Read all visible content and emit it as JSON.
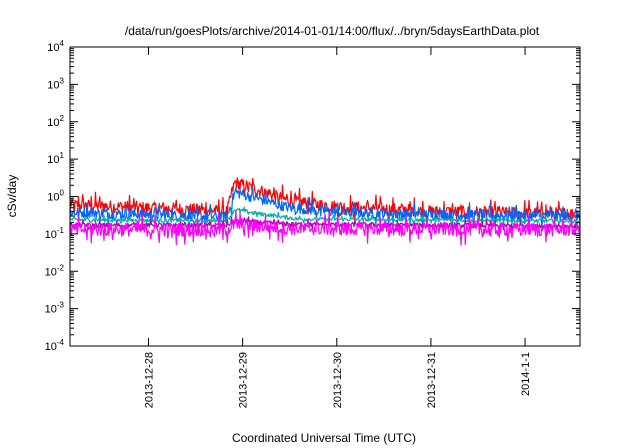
{
  "chart_data": {
    "type": "line",
    "title": "/data/run/goesPlots/archive/2014-01-01/14:00/flux/../bryn/5daysEarthData.plot",
    "xlabel": "Coordinated Universal Time (UTC)",
    "ylabel": "cSv/day",
    "yscale": "log",
    "ylim": [
      0.0001,
      10000
    ],
    "y_ticks": [
      {
        "value": 0.0001,
        "base": "10",
        "exp": "-4"
      },
      {
        "value": 0.001,
        "base": "10",
        "exp": "-3"
      },
      {
        "value": 0.01,
        "base": "10",
        "exp": "-2"
      },
      {
        "value": 0.1,
        "base": "10",
        "exp": "-1"
      },
      {
        "value": 1,
        "base": "10",
        "exp": "0"
      },
      {
        "value": 10,
        "base": "10",
        "exp": "1"
      },
      {
        "value": 100,
        "base": "10",
        "exp": "2"
      },
      {
        "value": 1000,
        "base": "10",
        "exp": "3"
      },
      {
        "value": 10000,
        "base": "10",
        "exp": "4"
      }
    ],
    "xlim": [
      "2013-12-27T04:00",
      "2014-01-01T14:00"
    ],
    "x_ticks": [
      {
        "value": "2013-12-28T00:00",
        "label": "2013-12-28"
      },
      {
        "value": "2013-12-29T00:00",
        "label": "2013-12-29"
      },
      {
        "value": "2013-12-30T00:00",
        "label": "2013-12-30"
      },
      {
        "value": "2013-12-31T00:00",
        "label": "2013-12-31"
      },
      {
        "value": "2014-01-01T00:00",
        "label": "2014-1-1"
      }
    ],
    "grid": false,
    "legend": "none",
    "series": [
      {
        "color": "#ff0000",
        "baseline": [
          [
            "2013-12-27T04:00",
            0.6
          ],
          [
            "2013-12-28T12:00",
            0.45
          ],
          [
            "2013-12-28T20:00",
            0.4
          ],
          [
            "2013-12-28T22:00",
            2.4
          ],
          [
            "2013-12-29T02:00",
            1.8
          ],
          [
            "2013-12-29T12:00",
            0.75
          ],
          [
            "2013-12-30T00:00",
            0.55
          ],
          [
            "2013-12-31T00:00",
            0.4
          ],
          [
            "2014-01-01T14:00",
            0.35
          ]
        ],
        "noise": 0.16
      },
      {
        "color": "#0066ff",
        "baseline": [
          [
            "2013-12-27T04:00",
            0.38
          ],
          [
            "2013-12-28T12:00",
            0.3
          ],
          [
            "2013-12-28T20:00",
            0.28
          ],
          [
            "2013-12-28T22:00",
            1.3
          ],
          [
            "2013-12-29T02:00",
            1.0
          ],
          [
            "2013-12-29T12:00",
            0.5
          ],
          [
            "2013-12-30T00:00",
            0.38
          ],
          [
            "2013-12-31T00:00",
            0.33
          ],
          [
            "2014-01-01T14:00",
            0.3
          ]
        ],
        "noise": 0.14
      },
      {
        "color": "#00b3a0",
        "baseline": [
          [
            "2013-12-27T04:00",
            0.24
          ],
          [
            "2013-12-28T20:00",
            0.22
          ],
          [
            "2013-12-28T22:00",
            0.45
          ],
          [
            "2013-12-29T04:00",
            0.35
          ],
          [
            "2013-12-29T14:00",
            0.25
          ],
          [
            "2014-01-01T14:00",
            0.22
          ]
        ],
        "noise": 0.05
      },
      {
        "color": "#aa00aa",
        "baseline": [
          [
            "2013-12-27T04:00",
            0.17
          ],
          [
            "2013-12-28T20:00",
            0.17
          ],
          [
            "2013-12-28T22:00",
            0.22
          ],
          [
            "2013-12-29T12:00",
            0.18
          ],
          [
            "2014-01-01T14:00",
            0.16
          ]
        ],
        "noise": 0.06
      },
      {
        "color": "#ff00ff",
        "baseline": [
          [
            "2013-12-27T04:00",
            0.13
          ],
          [
            "2013-12-28T20:00",
            0.13
          ],
          [
            "2013-12-28T22:00",
            0.18
          ],
          [
            "2013-12-29T12:00",
            0.14
          ],
          [
            "2014-01-01T14:00",
            0.13
          ]
        ],
        "noise": 0.18
      }
    ]
  }
}
